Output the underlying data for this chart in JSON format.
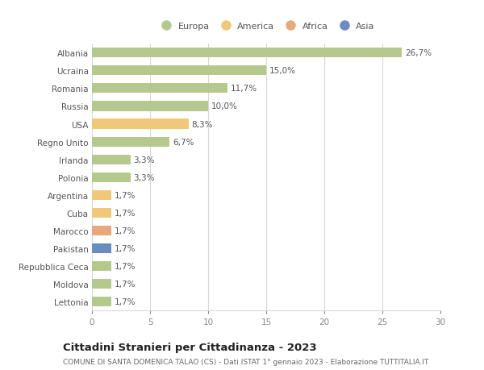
{
  "countries": [
    "Albania",
    "Ucraina",
    "Romania",
    "Russia",
    "USA",
    "Regno Unito",
    "Irlanda",
    "Polonia",
    "Argentina",
    "Cuba",
    "Marocco",
    "Pakistan",
    "Repubblica Ceca",
    "Moldova",
    "Lettonia"
  ],
  "values": [
    26.7,
    15.0,
    11.7,
    10.0,
    8.3,
    6.7,
    3.3,
    3.3,
    1.7,
    1.7,
    1.7,
    1.7,
    1.7,
    1.7,
    1.7
  ],
  "labels": [
    "26,7%",
    "15,0%",
    "11,7%",
    "10,0%",
    "8,3%",
    "6,7%",
    "3,3%",
    "3,3%",
    "1,7%",
    "1,7%",
    "1,7%",
    "1,7%",
    "1,7%",
    "1,7%",
    "1,7%"
  ],
  "categories": [
    "Europa",
    "America",
    "Africa",
    "Asia"
  ],
  "continent": [
    "Europa",
    "Europa",
    "Europa",
    "Europa",
    "America",
    "Europa",
    "Europa",
    "Europa",
    "America",
    "America",
    "Africa",
    "Asia",
    "Europa",
    "Europa",
    "Europa"
  ],
  "colors": {
    "Europa": "#b5c98e",
    "America": "#f0c87a",
    "Africa": "#e8a87c",
    "Asia": "#6b8cbf"
  },
  "xlim": [
    0,
    30
  ],
  "xticks": [
    0,
    5,
    10,
    15,
    20,
    25,
    30
  ],
  "title": "Cittadini Stranieri per Cittadinanza - 2023",
  "subtitle": "COMUNE DI SANTA DOMENICA TALAO (CS) - Dati ISTAT 1° gennaio 2023 - Elaborazione TUTTITALIA.IT",
  "background_color": "#ffffff",
  "grid_color": "#d8d8d8",
  "bar_height": 0.55,
  "label_fontsize": 7.5,
  "tick_fontsize": 7.5,
  "title_fontsize": 9.5,
  "subtitle_fontsize": 6.5,
  "yticklabel_fontsize": 7.5
}
